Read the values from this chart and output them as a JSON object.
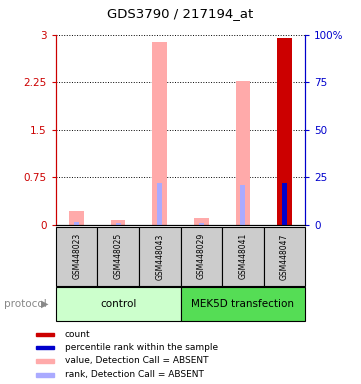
{
  "title": "GDS3790 / 217194_at",
  "samples": [
    "GSM448023",
    "GSM448025",
    "GSM448043",
    "GSM448029",
    "GSM448041",
    "GSM448047"
  ],
  "ylim_left": [
    0,
    3
  ],
  "ylim_right": [
    0,
    100
  ],
  "yticks_left": [
    0,
    0.75,
    1.5,
    2.25,
    3
  ],
  "yticks_right": [
    0,
    25,
    50,
    75,
    100
  ],
  "left_tick_labels": [
    "0",
    "0.75",
    "1.5",
    "2.25",
    "3"
  ],
  "right_tick_labels": [
    "0",
    "25",
    "50",
    "75",
    "100%"
  ],
  "value_bars": [
    0.22,
    0.07,
    2.88,
    0.1,
    2.27,
    2.95
  ],
  "rank_bars": [
    0.04,
    0.025,
    0.65,
    0.03,
    0.62,
    0.65
  ],
  "detection_absent": [
    true,
    true,
    true,
    true,
    true,
    false
  ],
  "color_value_absent": "#ffaaaa",
  "color_rank_absent": "#aaaaff",
  "color_count": "#cc0000",
  "color_percentile": "#0000cc",
  "group_colors": [
    "#ccffcc",
    "#55dd55"
  ],
  "sample_box_color": "#cccccc",
  "left_axis_color": "#cc0000",
  "right_axis_color": "#0000cc",
  "legend_items": [
    {
      "label": "count",
      "color": "#cc0000"
    },
    {
      "label": "percentile rank within the sample",
      "color": "#0000cc"
    },
    {
      "label": "value, Detection Call = ABSENT",
      "color": "#ffaaaa"
    },
    {
      "label": "rank, Detection Call = ABSENT",
      "color": "#aaaaff"
    }
  ],
  "value_bar_width": 0.35,
  "rank_bar_width": 0.12
}
